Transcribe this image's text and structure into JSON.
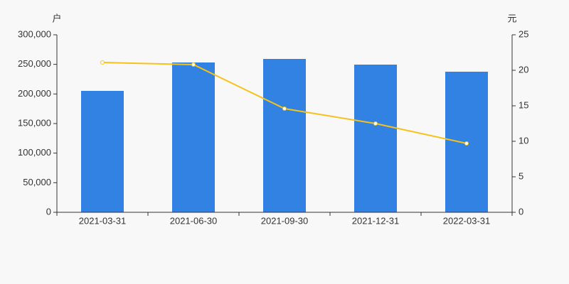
{
  "chart_data": {
    "type": "bar_line",
    "y_label": "户",
    "y2_label": "元",
    "categories": [
      "2021-03-31",
      "2021-06-30",
      "2021-09-30",
      "2021-12-31",
      "2022-03-31"
    ],
    "series": [
      {
        "type": "bar",
        "color": "#3282e3",
        "values": [
          205200,
          253200,
          259200,
          249600,
          237600
        ]
      },
      {
        "type": "line",
        "color": "#f5c21b",
        "axis": "y2",
        "values": [
          21.1,
          20.8,
          14.6,
          12.5,
          9.7
        ]
      }
    ],
    "ylim": [
      0,
      300000
    ],
    "yticks": [
      0,
      {
        "value": 50000,
        "label": "50,000"
      },
      {
        "value": 100000,
        "label": "100,000"
      },
      {
        "value": 150000,
        "label": "150,000"
      },
      {
        "value": 200000,
        "label": "200,000"
      },
      {
        "value": 250000,
        "label": "250,000"
      },
      {
        "value": 300000,
        "label": "300,000"
      }
    ],
    "y2lim": [
      0,
      25
    ],
    "y2ticks": [
      0,
      5,
      10,
      15,
      20,
      25
    ]
  }
}
